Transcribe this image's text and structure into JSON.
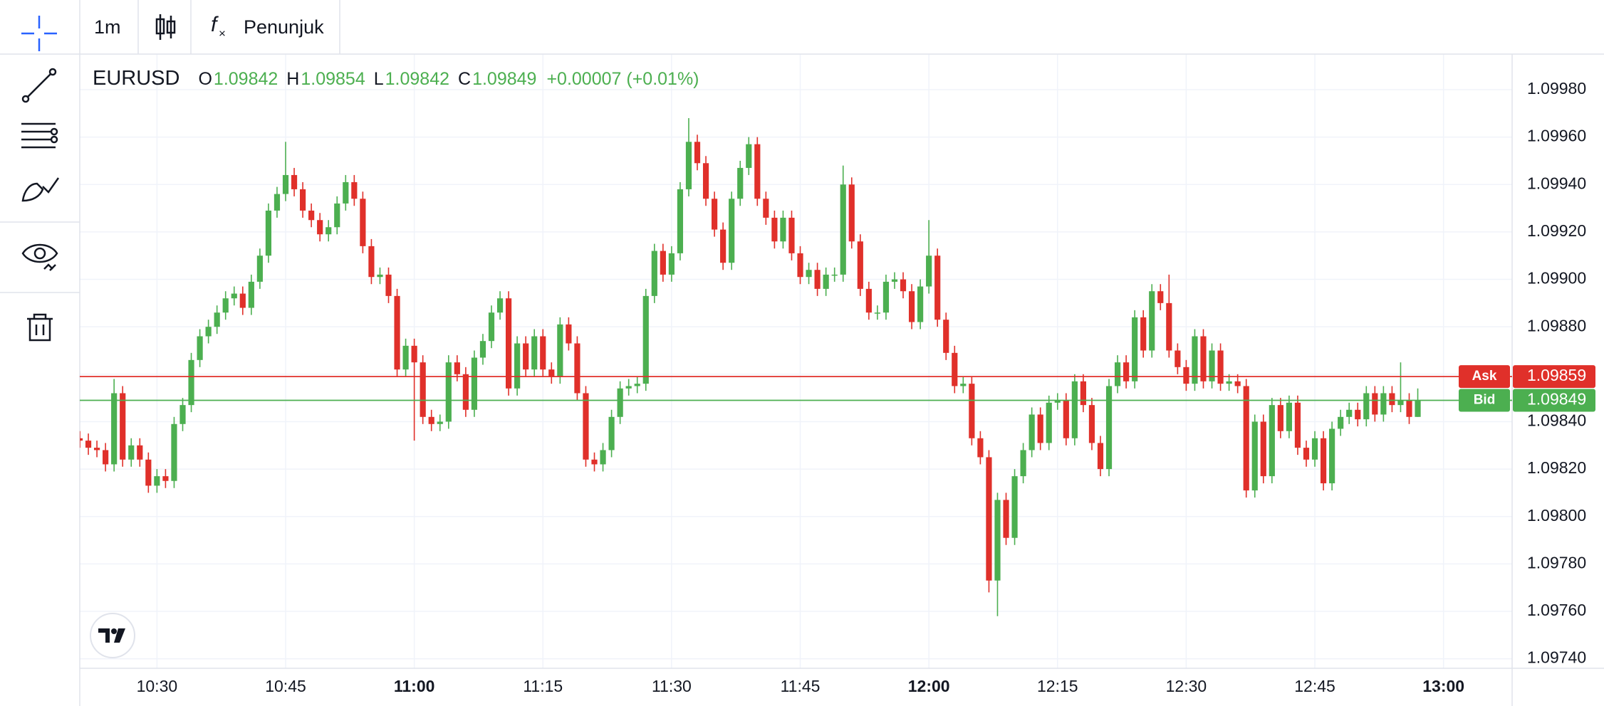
{
  "toolbar": {
    "interval": "1m",
    "indicators": "Penunjuk"
  },
  "chart_data": {
    "type": "candlestick",
    "symbol": "EURUSD",
    "ohlc": [
      {
        "label": "O",
        "value": 1.09842
      },
      {
        "label": "H",
        "value": 1.09854
      },
      {
        "label": "L",
        "value": 1.09842
      },
      {
        "label": "C",
        "value": 1.09849
      }
    ],
    "change": "+0.00007 (+0.01%)",
    "up_color": "#4caf50",
    "down_color": "#e0302a",
    "grid": true,
    "xlim": [
      621,
      788
    ],
    "xticks": [
      {
        "value": 630,
        "label": "10:30"
      },
      {
        "value": 645,
        "label": "10:45"
      },
      {
        "value": 660,
        "label": "11:00"
      },
      {
        "value": 675,
        "label": "11:15"
      },
      {
        "value": 690,
        "label": "11:30"
      },
      {
        "value": 705,
        "label": "11:45"
      },
      {
        "value": 720,
        "label": "12:00"
      },
      {
        "value": 735,
        "label": "12:15"
      },
      {
        "value": 750,
        "label": "12:30"
      },
      {
        "value": 765,
        "label": "12:45"
      },
      {
        "value": 780,
        "label": "13:00"
      }
    ],
    "ylim": [
      1.09736,
      1.09995
    ],
    "yticks": [
      {
        "value": 1.0974,
        "label": "1.09740"
      },
      {
        "value": 1.0976,
        "label": "1.09760"
      },
      {
        "value": 1.0978,
        "label": "1.09780"
      },
      {
        "value": 1.098,
        "label": "1.09800"
      },
      {
        "value": 1.0982,
        "label": "1.09820"
      },
      {
        "value": 1.0984,
        "label": "1.09840"
      },
      {
        "value": 1.0986,
        "label": "1.09860"
      },
      {
        "value": 1.0988,
        "label": "1.09880"
      },
      {
        "value": 1.099,
        "label": "1.09900"
      },
      {
        "value": 1.0992,
        "label": "1.09920"
      },
      {
        "value": 1.0994,
        "label": "1.09940"
      },
      {
        "value": 1.0996,
        "label": "1.09960"
      },
      {
        "value": 1.0998,
        "label": "1.09980"
      }
    ],
    "price_lines": [
      {
        "name": "Ask",
        "value": 1.09859,
        "color": "#e0302a"
      },
      {
        "name": "Bid",
        "value": 1.09849,
        "color": "#4caf50"
      }
    ],
    "x": [
      621,
      622,
      623,
      624,
      625,
      626,
      627,
      628,
      629,
      630,
      631,
      632,
      633,
      634,
      635,
      636,
      637,
      638,
      639,
      640,
      641,
      642,
      643,
      644,
      645,
      646,
      647,
      648,
      649,
      650,
      651,
      652,
      653,
      654,
      655,
      656,
      657,
      658,
      659,
      660,
      661,
      662,
      663,
      664,
      665,
      666,
      667,
      668,
      669,
      670,
      671,
      672,
      673,
      674,
      675,
      676,
      677,
      678,
      679,
      680,
      681,
      682,
      683,
      684,
      685,
      686,
      687,
      688,
      689,
      690,
      691,
      692,
      693,
      694,
      695,
      696,
      697,
      698,
      699,
      700,
      701,
      702,
      703,
      704,
      705,
      706,
      707,
      708,
      709,
      710,
      711,
      712,
      713,
      714,
      715,
      716,
      717,
      718,
      719,
      720,
      721,
      722,
      723,
      724,
      725,
      726,
      727,
      728,
      729,
      730,
      731,
      732,
      733,
      734,
      735,
      736,
      737,
      738,
      739,
      740,
      741,
      742,
      743,
      744,
      745,
      746,
      747,
      748,
      749,
      750,
      751,
      752,
      753,
      754,
      755,
      756,
      757,
      758,
      759,
      760,
      761,
      762,
      763,
      764,
      765,
      766,
      767,
      768,
      769,
      770,
      771,
      772,
      773,
      774,
      775,
      776,
      777
    ],
    "open": [
      1.09833,
      1.09832,
      1.09829,
      1.09828,
      1.09822,
      1.09852,
      1.09824,
      1.0983,
      1.09824,
      1.09813,
      1.09817,
      1.09815,
      1.09839,
      1.09847,
      1.09866,
      1.09876,
      1.0988,
      1.09886,
      1.09892,
      1.09894,
      1.09888,
      1.09899,
      1.0991,
      1.09929,
      1.09936,
      1.09944,
      1.09938,
      1.09929,
      1.09925,
      1.09919,
      1.09922,
      1.09932,
      1.09941,
      1.09934,
      1.09914,
      1.09901,
      1.09902,
      1.09893,
      1.09862,
      1.09872,
      1.09865,
      1.09842,
      1.09839,
      1.0984,
      1.09865,
      1.0986,
      1.09845,
      1.09867,
      1.09874,
      1.09886,
      1.09892,
      1.09854,
      1.09873,
      1.09862,
      1.09876,
      1.09862,
      1.09859,
      1.09881,
      1.09873,
      1.09852,
      1.09824,
      1.09822,
      1.09828,
      1.09842,
      1.09854,
      1.09855,
      1.09856,
      1.09893,
      1.09912,
      1.09902,
      1.09911,
      1.09938,
      1.09958,
      1.09949,
      1.09934,
      1.09921,
      1.09907,
      1.09934,
      1.09947,
      1.09957,
      1.09934,
      1.09926,
      1.09916,
      1.09926,
      1.09911,
      1.09901,
      1.09904,
      1.09896,
      1.09902,
      1.09902,
      1.0994,
      1.09916,
      1.09896,
      1.09886,
      1.09886,
      1.09899,
      1.099,
      1.09895,
      1.09882,
      1.09897,
      1.0991,
      1.09883,
      1.09869,
      1.09855,
      1.09856,
      1.09833,
      1.09825,
      1.09773,
      1.09807,
      1.09791,
      1.09817,
      1.09828,
      1.09843,
      1.09831,
      1.09848,
      1.09849,
      1.09833,
      1.09857,
      1.09847,
      1.09831,
      1.0982,
      1.09855,
      1.09865,
      1.09857,
      1.09884,
      1.0987,
      1.09895,
      1.0989,
      1.0987,
      1.09863,
      1.09856,
      1.09876,
      1.09857,
      1.0987,
      1.09856,
      1.09857,
      1.09855,
      1.09811,
      1.0984,
      1.09817,
      1.09847,
      1.09836,
      1.09848,
      1.09829,
      1.09824,
      1.09833,
      1.09814,
      1.09837,
      1.09842,
      1.09845,
      1.09841,
      1.09852,
      1.09843,
      1.09852,
      1.09847,
      1.09849,
      1.09842
    ],
    "high": [
      1.09836,
      1.09835,
      1.09832,
      1.09831,
      1.09858,
      1.09855,
      1.09833,
      1.09833,
      1.09827,
      1.0982,
      1.0982,
      1.09842,
      1.0985,
      1.09869,
      1.09879,
      1.09883,
      1.09889,
      1.09895,
      1.09897,
      1.09897,
      1.09902,
      1.09913,
      1.09932,
      1.09939,
      1.09958,
      1.09947,
      1.09941,
      1.09932,
      1.09928,
      1.09925,
      1.09935,
      1.09944,
      1.09944,
      1.09937,
      1.09917,
      1.09905,
      1.09905,
      1.09896,
      1.09875,
      1.09875,
      1.09868,
      1.09845,
      1.09843,
      1.09868,
      1.09868,
      1.09863,
      1.0987,
      1.09877,
      1.09889,
      1.09895,
      1.09895,
      1.09876,
      1.09876,
      1.09879,
      1.09879,
      1.09865,
      1.09884,
      1.09884,
      1.09876,
      1.09855,
      1.09827,
      1.09831,
      1.09845,
      1.09857,
      1.09858,
      1.09859,
      1.09896,
      1.09915,
      1.09915,
      1.09914,
      1.09941,
      1.09968,
      1.09961,
      1.09952,
      1.09937,
      1.09924,
      1.09937,
      1.0995,
      1.0996,
      1.0996,
      1.09937,
      1.09929,
      1.09929,
      1.09929,
      1.09914,
      1.09907,
      1.09907,
      1.09905,
      1.09905,
      1.09948,
      1.09943,
      1.09919,
      1.09899,
      1.09889,
      1.09902,
      1.09903,
      1.09903,
      1.09898,
      1.099,
      1.09925,
      1.09913,
      1.09886,
      1.09872,
      1.09859,
      1.09859,
      1.09836,
      1.09828,
      1.0981,
      1.0981,
      1.0982,
      1.09831,
      1.09846,
      1.09846,
      1.09851,
      1.09852,
      1.09852,
      1.0986,
      1.0986,
      1.0985,
      1.09834,
      1.09858,
      1.09868,
      1.09868,
      1.09887,
      1.09887,
      1.09898,
      1.09898,
      1.09902,
      1.09873,
      1.09866,
      1.09879,
      1.09879,
      1.09873,
      1.09873,
      1.0986,
      1.0986,
      1.09858,
      1.09843,
      1.09843,
      1.0985,
      1.0985,
      1.09851,
      1.09851,
      1.09832,
      1.09836,
      1.09836,
      1.0984,
      1.09845,
      1.09848,
      1.09848,
      1.09855,
      1.09855,
      1.09855,
      1.09855,
      1.09865,
      1.09852,
      1.09854
    ],
    "low": [
      1.09829,
      1.09826,
      1.09825,
      1.09819,
      1.09819,
      1.09821,
      1.09821,
      1.09821,
      1.0981,
      1.0981,
      1.09812,
      1.09812,
      1.09836,
      1.09844,
      1.09863,
      1.09873,
      1.09877,
      1.09883,
      1.09889,
      1.09885,
      1.09885,
      1.09896,
      1.09907,
      1.09926,
      1.09933,
      1.09935,
      1.09926,
      1.09922,
      1.09916,
      1.09916,
      1.09919,
      1.09929,
      1.09931,
      1.09911,
      1.09898,
      1.09898,
      1.0989,
      1.09859,
      1.09859,
      1.09832,
      1.09839,
      1.09836,
      1.09836,
      1.09837,
      1.09857,
      1.09842,
      1.09842,
      1.09864,
      1.09871,
      1.09883,
      1.09851,
      1.09851,
      1.09859,
      1.09859,
      1.09859,
      1.09856,
      1.09856,
      1.0987,
      1.09849,
      1.09821,
      1.09819,
      1.09819,
      1.09825,
      1.09839,
      1.09851,
      1.09852,
      1.09853,
      1.0989,
      1.09899,
      1.09899,
      1.09908,
      1.09935,
      1.09946,
      1.09931,
      1.09918,
      1.09904,
      1.09904,
      1.09931,
      1.09944,
      1.09931,
      1.09923,
      1.09913,
      1.09913,
      1.09908,
      1.09898,
      1.09898,
      1.09893,
      1.09893,
      1.09899,
      1.09899,
      1.09913,
      1.09893,
      1.09883,
      1.09883,
      1.09883,
      1.09896,
      1.09892,
      1.09879,
      1.09879,
      1.09894,
      1.0988,
      1.09866,
      1.09852,
      1.09852,
      1.0983,
      1.09822,
      1.09768,
      1.09758,
      1.09788,
      1.09788,
      1.09814,
      1.09825,
      1.09828,
      1.09828,
      1.09845,
      1.0983,
      1.0983,
      1.09844,
      1.09828,
      1.09817,
      1.09817,
      1.09852,
      1.09854,
      1.09854,
      1.09867,
      1.09867,
      1.09887,
      1.09867,
      1.0986,
      1.09853,
      1.09853,
      1.09854,
      1.09854,
      1.09853,
      1.09853,
      1.09852,
      1.09808,
      1.09808,
      1.09814,
      1.09814,
      1.09833,
      1.09833,
      1.09826,
      1.09821,
      1.09821,
      1.09811,
      1.09811,
      1.09834,
      1.09839,
      1.09838,
      1.09838,
      1.0984,
      1.0984,
      1.09844,
      1.09844,
      1.09839,
      1.09842
    ],
    "close": [
      1.09832,
      1.09829,
      1.09828,
      1.09822,
      1.09852,
      1.09824,
      1.0983,
      1.09824,
      1.09813,
      1.09817,
      1.09815,
      1.09839,
      1.09847,
      1.09866,
      1.09876,
      1.0988,
      1.09886,
      1.09892,
      1.09894,
      1.09888,
      1.09899,
      1.0991,
      1.09929,
      1.09936,
      1.09944,
      1.09938,
      1.09929,
      1.09925,
      1.09919,
      1.09922,
      1.09932,
      1.09941,
      1.09934,
      1.09914,
      1.09901,
      1.09902,
      1.09893,
      1.09862,
      1.09872,
      1.09865,
      1.09842,
      1.09839,
      1.0984,
      1.09865,
      1.0986,
      1.09845,
      1.09867,
      1.09874,
      1.09886,
      1.09892,
      1.09854,
      1.09873,
      1.09862,
      1.09876,
      1.09862,
      1.09859,
      1.09881,
      1.09873,
      1.09852,
      1.09824,
      1.09822,
      1.09828,
      1.09842,
      1.09854,
      1.09855,
      1.09856,
      1.09893,
      1.09912,
      1.09902,
      1.09911,
      1.09938,
      1.09958,
      1.09949,
      1.09934,
      1.09921,
      1.09907,
      1.09934,
      1.09947,
      1.09957,
      1.09934,
      1.09926,
      1.09916,
      1.09926,
      1.09911,
      1.09901,
      1.09904,
      1.09896,
      1.09902,
      1.09902,
      1.0994,
      1.09916,
      1.09896,
      1.09886,
      1.09886,
      1.09899,
      1.099,
      1.09895,
      1.09882,
      1.09897,
      1.0991,
      1.09883,
      1.09869,
      1.09855,
      1.09856,
      1.09833,
      1.09825,
      1.09773,
      1.09807,
      1.09791,
      1.09817,
      1.09828,
      1.09843,
      1.09831,
      1.09848,
      1.09849,
      1.09833,
      1.09857,
      1.09847,
      1.09831,
      1.0982,
      1.09855,
      1.09865,
      1.09857,
      1.09884,
      1.0987,
      1.09895,
      1.0989,
      1.0987,
      1.09863,
      1.09856,
      1.09876,
      1.09857,
      1.0987,
      1.09856,
      1.09857,
      1.09855,
      1.09811,
      1.0984,
      1.09817,
      1.09847,
      1.09836,
      1.09848,
      1.09829,
      1.09824,
      1.09833,
      1.09814,
      1.09837,
      1.09842,
      1.09845,
      1.09841,
      1.09852,
      1.09843,
      1.09852,
      1.09847,
      1.09849,
      1.09842,
      1.09849
    ]
  }
}
